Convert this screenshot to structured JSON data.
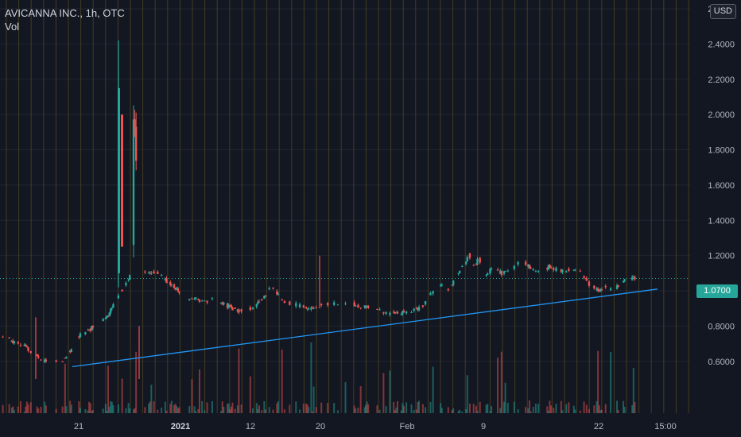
{
  "header": {
    "symbol_line": "AVICANNA INC., 1h, OTC",
    "volume_label": "Vol",
    "currency": "USD"
  },
  "last_price": {
    "label": "1.0700",
    "value": 1.07,
    "color": "#26a69a"
  },
  "colors": {
    "background": "#131722",
    "up": "#26a69a",
    "down": "#ef5350",
    "trendline": "#2196f3",
    "session_line": "#6b5a1e",
    "grid": "#1f2430",
    "axis_text": "#b2b5be"
  },
  "chart_data": {
    "type": "candlestick",
    "title": "AVICANNA INC., 1h, OTC",
    "ylim": [
      0.5,
      2.6
    ],
    "y_ticks": [
      0.6,
      0.8,
      1.0,
      1.2,
      1.4,
      1.6,
      1.8,
      2.0,
      2.2,
      2.4,
      2.6
    ],
    "y_tick_labels": [
      "0.6000",
      "0.8000",
      "1.0000",
      "1.2000",
      "1.4000",
      "1.6000",
      "1.8000",
      "2.0000",
      "2.2000",
      "2.4000",
      "2.6000"
    ],
    "x_tick_labels": [
      "21",
      "2021",
      "12",
      "20",
      "Feb",
      "9",
      "22",
      "15:00"
    ],
    "grid": true,
    "trendline": {
      "start": [
        0.57
      ],
      "end": [
        1.01
      ]
    },
    "price_anchors": [
      [
        0,
        0.74
      ],
      [
        10,
        0.71
      ],
      [
        18,
        0.69
      ],
      [
        26,
        0.64
      ],
      [
        34,
        0.6
      ],
      [
        42,
        0.61
      ],
      [
        48,
        0.6
      ],
      [
        54,
        0.66
      ],
      [
        60,
        0.74
      ],
      [
        68,
        0.78
      ],
      [
        76,
        0.81
      ],
      [
        84,
        0.86
      ],
      [
        90,
        0.96
      ],
      [
        96,
        1.02
      ],
      [
        101,
        1.08
      ],
      [
        103,
        1.25
      ],
      [
        104,
        2.0
      ],
      [
        105,
        1.9
      ],
      [
        106,
        1.7
      ],
      [
        108,
        1.45
      ],
      [
        110,
        1.35
      ],
      [
        112,
        1.12
      ],
      [
        116,
        1.1
      ],
      [
        120,
        1.11
      ],
      [
        126,
        1.08
      ],
      [
        132,
        1.04
      ],
      [
        138,
        1.01
      ],
      [
        144,
        0.94
      ],
      [
        150,
        0.96
      ],
      [
        158,
        0.94
      ],
      [
        166,
        0.95
      ],
      [
        174,
        0.93
      ],
      [
        182,
        0.9
      ],
      [
        190,
        0.88
      ],
      [
        196,
        0.9
      ],
      [
        202,
        0.93
      ],
      [
        208,
        0.98
      ],
      [
        212,
        1.02
      ],
      [
        218,
        0.98
      ],
      [
        224,
        0.93
      ],
      [
        232,
        0.92
      ],
      [
        240,
        0.9
      ],
      [
        248,
        0.91
      ],
      [
        256,
        0.93
      ],
      [
        264,
        0.92
      ],
      [
        272,
        0.94
      ],
      [
        280,
        0.92
      ],
      [
        290,
        0.9
      ],
      [
        300,
        0.88
      ],
      [
        310,
        0.87
      ],
      [
        320,
        0.88
      ],
      [
        330,
        0.9
      ],
      [
        340,
        1.0
      ],
      [
        346,
        1.03
      ],
      [
        352,
        1.01
      ],
      [
        358,
        1.08
      ],
      [
        364,
        1.15
      ],
      [
        368,
        1.2
      ],
      [
        372,
        1.14
      ],
      [
        376,
        1.18
      ],
      [
        380,
        1.08
      ],
      [
        386,
        1.12
      ],
      [
        394,
        1.1
      ],
      [
        402,
        1.13
      ],
      [
        410,
        1.17
      ],
      [
        418,
        1.12
      ],
      [
        424,
        1.1
      ],
      [
        432,
        1.14
      ],
      [
        440,
        1.11
      ],
      [
        448,
        1.12
      ],
      [
        456,
        1.1
      ],
      [
        464,
        1.03
      ],
      [
        470,
        1.0
      ],
      [
        476,
        1.02
      ],
      [
        482,
        1.0
      ],
      [
        488,
        1.04
      ],
      [
        492,
        1.07
      ]
    ]
  }
}
